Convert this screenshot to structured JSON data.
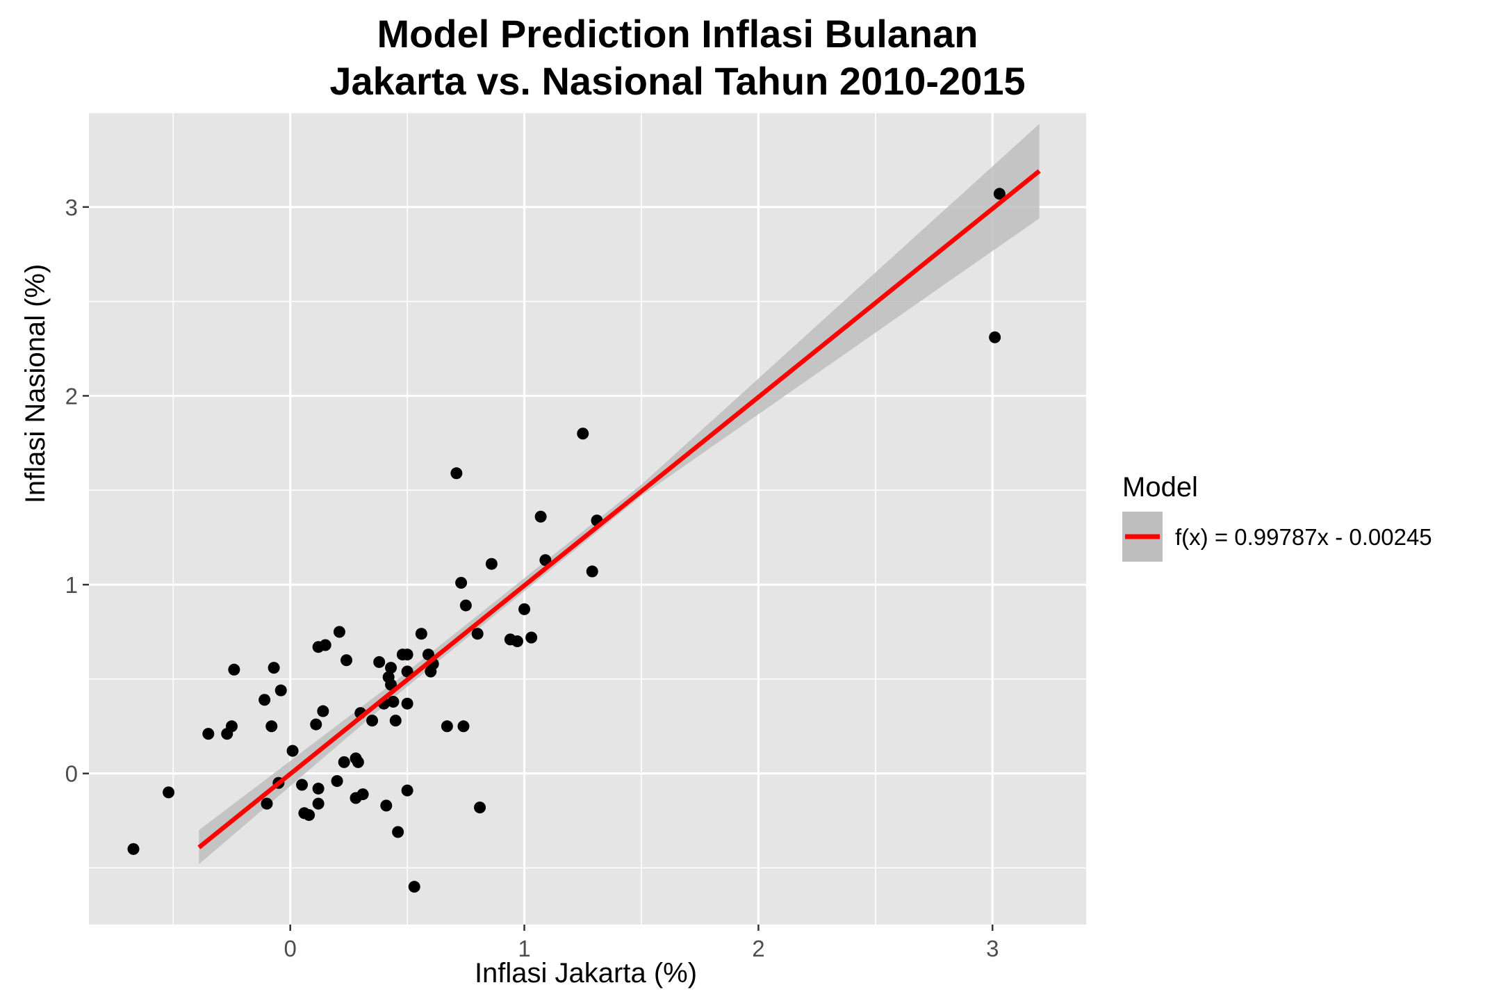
{
  "chart_data": {
    "type": "scatter",
    "title_line1": "Model Prediction Inflasi Bulanan",
    "title_line2": "Jakarta vs. Nasional Tahun 2010-2015",
    "xlabel": "Inflasi Jakarta (%)",
    "ylabel": "Inflasi Nasional (%)",
    "xlim": [
      -0.86,
      3.4
    ],
    "ylim": [
      -0.8,
      3.5
    ],
    "x_ticks": [
      0,
      1,
      2,
      3
    ],
    "y_ticks": [
      0,
      1,
      2,
      3
    ],
    "grid": true,
    "legend": {
      "title": "Model",
      "placement": "right",
      "entries": [
        "f(x) = 0.99787x - 0.00245"
      ]
    },
    "colors": {
      "panel": "#e5e5e5",
      "grid": "#ffffff",
      "points": "#000000",
      "fit_line": "#ff0000",
      "ribbon": "#bebebe"
    },
    "fit": {
      "slope": 0.99787,
      "intercept": -0.00245,
      "x_range": [
        -0.39,
        3.2
      ],
      "ribbon_upper": [
        [
          -0.39,
          -0.3
        ],
        [
          0.45,
          0.49
        ],
        [
          1.5,
          1.53
        ],
        [
          3.2,
          3.44
        ]
      ],
      "ribbon_lower": [
        [
          -0.39,
          -0.48
        ],
        [
          0.45,
          0.41
        ],
        [
          1.5,
          1.47
        ],
        [
          3.2,
          2.94
        ]
      ]
    },
    "points": [
      {
        "x": -0.67,
        "y": -0.4
      },
      {
        "x": -0.52,
        "y": -0.1
      },
      {
        "x": -0.35,
        "y": 0.21
      },
      {
        "x": -0.27,
        "y": 0.21
      },
      {
        "x": -0.25,
        "y": 0.25
      },
      {
        "x": -0.24,
        "y": 0.55
      },
      {
        "x": -0.11,
        "y": 0.39
      },
      {
        "x": -0.1,
        "y": -0.16
      },
      {
        "x": -0.08,
        "y": 0.25
      },
      {
        "x": -0.07,
        "y": 0.56
      },
      {
        "x": -0.05,
        "y": -0.05
      },
      {
        "x": -0.04,
        "y": 0.44
      },
      {
        "x": 0.01,
        "y": 0.12
      },
      {
        "x": 0.05,
        "y": -0.06
      },
      {
        "x": 0.06,
        "y": -0.21
      },
      {
        "x": 0.08,
        "y": -0.22
      },
      {
        "x": 0.11,
        "y": 0.26
      },
      {
        "x": 0.12,
        "y": -0.08
      },
      {
        "x": 0.12,
        "y": 0.67
      },
      {
        "x": 0.12,
        "y": -0.16
      },
      {
        "x": 0.14,
        "y": 0.33
      },
      {
        "x": 0.15,
        "y": 0.68
      },
      {
        "x": 0.2,
        "y": -0.04
      },
      {
        "x": 0.21,
        "y": 0.75
      },
      {
        "x": 0.23,
        "y": 0.06
      },
      {
        "x": 0.24,
        "y": 0.6
      },
      {
        "x": 0.28,
        "y": 0.08
      },
      {
        "x": 0.28,
        "y": -0.13
      },
      {
        "x": 0.29,
        "y": 0.06
      },
      {
        "x": 0.3,
        "y": 0.32
      },
      {
        "x": 0.31,
        "y": -0.11
      },
      {
        "x": 0.35,
        "y": 0.28
      },
      {
        "x": 0.38,
        "y": 0.59
      },
      {
        "x": 0.4,
        "y": 0.37
      },
      {
        "x": 0.41,
        "y": -0.17
      },
      {
        "x": 0.42,
        "y": 0.51
      },
      {
        "x": 0.43,
        "y": 0.56
      },
      {
        "x": 0.43,
        "y": 0.47
      },
      {
        "x": 0.44,
        "y": 0.38
      },
      {
        "x": 0.45,
        "y": 0.28
      },
      {
        "x": 0.46,
        "y": -0.31
      },
      {
        "x": 0.48,
        "y": 0.63
      },
      {
        "x": 0.5,
        "y": 0.63
      },
      {
        "x": 0.5,
        "y": 0.54
      },
      {
        "x": 0.5,
        "y": 0.37
      },
      {
        "x": 0.5,
        "y": -0.09
      },
      {
        "x": 0.53,
        "y": -0.6
      },
      {
        "x": 0.56,
        "y": 0.74
      },
      {
        "x": 0.59,
        "y": 0.63
      },
      {
        "x": 0.6,
        "y": 0.54
      },
      {
        "x": 0.61,
        "y": 0.58
      },
      {
        "x": 0.67,
        "y": 0.25
      },
      {
        "x": 0.71,
        "y": 1.59
      },
      {
        "x": 0.73,
        "y": 1.01
      },
      {
        "x": 0.74,
        "y": 0.25
      },
      {
        "x": 0.75,
        "y": 0.89
      },
      {
        "x": 0.8,
        "y": 0.74
      },
      {
        "x": 0.81,
        "y": -0.18
      },
      {
        "x": 0.86,
        "y": 1.11
      },
      {
        "x": 0.94,
        "y": 0.71
      },
      {
        "x": 0.97,
        "y": 0.7
      },
      {
        "x": 1.0,
        "y": 0.87
      },
      {
        "x": 1.03,
        "y": 0.72
      },
      {
        "x": 1.07,
        "y": 1.36
      },
      {
        "x": 1.09,
        "y": 1.13
      },
      {
        "x": 1.25,
        "y": 1.8
      },
      {
        "x": 1.29,
        "y": 1.07
      },
      {
        "x": 1.31,
        "y": 1.34
      },
      {
        "x": 3.01,
        "y": 2.31
      },
      {
        "x": 3.03,
        "y": 3.07
      }
    ]
  }
}
